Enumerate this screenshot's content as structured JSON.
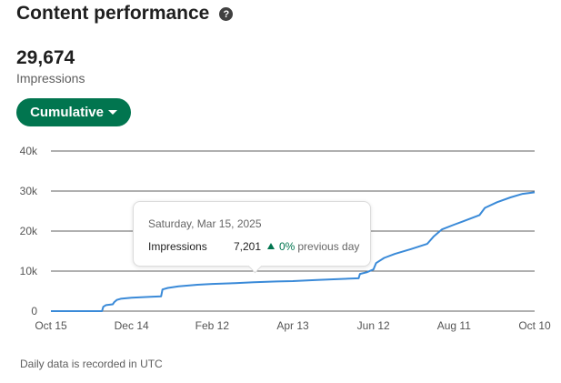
{
  "header": {
    "title": "Content performance",
    "help_icon": "question-circle-icon"
  },
  "metric": {
    "value": "29,674",
    "label": "Impressions"
  },
  "filter": {
    "label": "Cumulative",
    "icon": "caret-down-icon"
  },
  "colors": {
    "accent": "#01754f",
    "line": "#3a8ad8",
    "grid": "#2b2b2b"
  },
  "chart_data": {
    "type": "line",
    "title": "",
    "xlabel": "",
    "ylabel": "",
    "x_ticks": [
      "Oct 15",
      "Dec 14",
      "Feb 12",
      "Apr 13",
      "Jun 12",
      "Aug 11",
      "Oct 10"
    ],
    "y_ticks": [
      "0",
      "10k",
      "20k",
      "30k",
      "40k"
    ],
    "ylim": [
      0,
      40000
    ],
    "grid": true,
    "series": [
      {
        "points": [
          [
            "2024-10-15",
            0
          ],
          [
            "2024-11-22",
            0
          ],
          [
            "2024-11-23",
            1100
          ],
          [
            "2024-11-25",
            1500
          ],
          [
            "2024-11-30",
            1700
          ],
          [
            "2024-12-01",
            2200
          ],
          [
            "2024-12-03",
            2800
          ],
          [
            "2024-12-06",
            3100
          ],
          [
            "2024-12-14",
            3350
          ],
          [
            "2024-12-28",
            3600
          ],
          [
            "2025-01-05",
            3700
          ],
          [
            "2025-01-06",
            5400
          ],
          [
            "2025-01-10",
            5800
          ],
          [
            "2025-01-18",
            6200
          ],
          [
            "2025-02-01",
            6600
          ],
          [
            "2025-02-12",
            6800
          ],
          [
            "2025-03-01",
            7000
          ],
          [
            "2025-03-15",
            7201
          ],
          [
            "2025-04-01",
            7400
          ],
          [
            "2025-04-13",
            7500
          ],
          [
            "2025-05-01",
            7800
          ],
          [
            "2025-06-01",
            8200
          ],
          [
            "2025-06-02",
            9300
          ],
          [
            "2025-06-07",
            9700
          ],
          [
            "2025-06-12",
            10400
          ],
          [
            "2025-06-14",
            12000
          ],
          [
            "2025-06-20",
            13300
          ],
          [
            "2025-06-28",
            14300
          ],
          [
            "2025-07-10",
            15500
          ],
          [
            "2025-07-22",
            16800
          ],
          [
            "2025-07-27",
            18700
          ],
          [
            "2025-08-02",
            20400
          ],
          [
            "2025-08-11",
            21600
          ],
          [
            "2025-08-20",
            22700
          ],
          [
            "2025-08-30",
            24000
          ],
          [
            "2025-09-03",
            25800
          ],
          [
            "2025-09-12",
            27200
          ],
          [
            "2025-09-22",
            28400
          ],
          [
            "2025-10-01",
            29300
          ],
          [
            "2025-10-10",
            29674
          ]
        ]
      }
    ]
  },
  "tooltip": {
    "date": "Saturday, Mar 15, 2025",
    "label": "Impressions",
    "value": "7,201",
    "change": "0%",
    "change_suffix": "previous day"
  },
  "footnote": "Daily data is recorded in UTC"
}
